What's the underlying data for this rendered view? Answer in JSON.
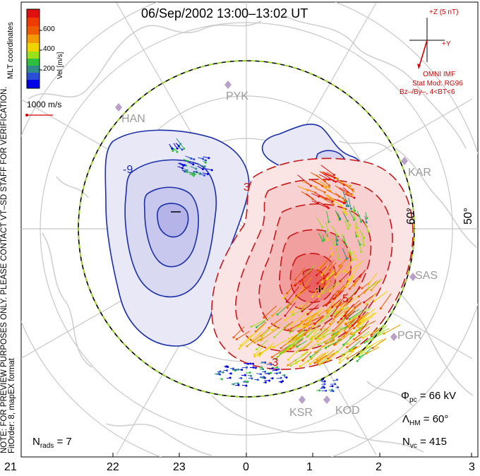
{
  "title": "06/Sep/2002 13:00–13:02 UT",
  "sidebar": {
    "note": "NOTE: FOR PREVIEW PURPOSES ONLY. PLEASE CONTACT VT–SD STAFF FOR VERIFICATION.",
    "fitorder": "FitOrder: 8, mapEX format",
    "coords": "MLT coordinates"
  },
  "colorbar": {
    "title": "Vel [m/s]",
    "ticks": [
      "600",
      "400",
      "200"
    ],
    "colors": [
      "#0000e6",
      "#2a4fd6",
      "#2f8a8a",
      "#2fbf3f",
      "#9be01a",
      "#f0d400",
      "#f39a00",
      "#ef5a00",
      "#e01010"
    ]
  },
  "scale": {
    "label": "1000 m/s"
  },
  "imf": {
    "axis_z": "+Z (5 nT)",
    "axis_y": "+Y",
    "source": "OMNI IMF",
    "model": "Stat Mod: RG96",
    "condition": "Bz–/By–, 4<BT<6"
  },
  "stations": [
    "PYK",
    "HAN",
    "KAR",
    "SAS",
    "PGR",
    "KSR",
    "KOD"
  ],
  "lat_labels": [
    "60°",
    "50°"
  ],
  "contour_labels": [
    "-9",
    "3",
    "-3",
    "5"
  ],
  "stats": {
    "phi_symbol": "Φ",
    "phi_sub": "pc",
    "phi_value": "= 66 kV",
    "lambda_symbol": "Λ",
    "lambda_sub": "HM",
    "lambda_value": "= 60°",
    "n_symbol": "N",
    "nvc_sub": "vc",
    "nvc_value": "= 415",
    "nrads_sub": "rads",
    "nrads_value": "= 7"
  },
  "mlt_ticks": [
    "21",
    "22",
    "23",
    "0",
    "1",
    "2",
    "3"
  ],
  "colors": {
    "positive_cell": "#e02020",
    "negative_cell": "#1a2fa8",
    "hmb": "#9be01a",
    "annotation_red": "#d40000",
    "station_marker": "#b8a0c8"
  }
}
